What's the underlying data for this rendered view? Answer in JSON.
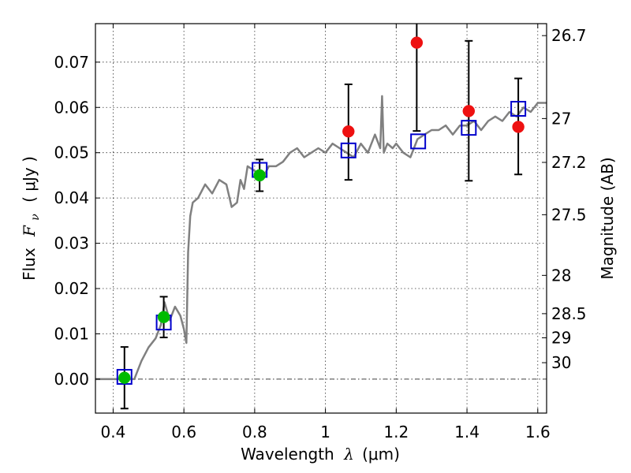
{
  "chart_data": {
    "type": "scatter",
    "xlabel_text": "Wavelength",
    "xlabel_symbol": "λ",
    "xlabel_unit": "(μm)",
    "ylabel_text": "Flux",
    "ylabel_symbol": "F",
    "ylabel_subscript": "ν",
    "ylabel_unit": "( μJy )",
    "y2label": "Magnitude (AB)",
    "xlim": [
      0.35,
      1.625
    ],
    "ylim": [
      -0.0075,
      0.0785
    ],
    "grid": true,
    "x_ticks": [
      0.4,
      0.6,
      0.8,
      1.0,
      1.2,
      1.4,
      1.6
    ],
    "x_tick_labels": [
      "0.4",
      "0.6",
      "0.8",
      "1",
      "1.2",
      "1.4",
      "1.6"
    ],
    "y_ticks": [
      0.0,
      0.01,
      0.02,
      0.03,
      0.04,
      0.05,
      0.06,
      0.07
    ],
    "y_tick_labels": [
      "0.00",
      "0.01",
      "0.02",
      "0.03",
      "0.04",
      "0.05",
      "0.06",
      "0.07"
    ],
    "mag_ticks": [
      26.7,
      27,
      27.2,
      27.5,
      28,
      28.5,
      29,
      30
    ],
    "mag_tick_labels": [
      "26.7",
      "27",
      "27.2",
      "27.5",
      "28",
      "28.5",
      "29",
      "30"
    ],
    "model_spectrum": {
      "color": "#808080",
      "x": [
        0.35,
        0.46,
        0.48,
        0.5,
        0.52,
        0.535,
        0.545,
        0.56,
        0.575,
        0.59,
        0.6,
        0.607,
        0.612,
        0.618,
        0.625,
        0.64,
        0.66,
        0.68,
        0.7,
        0.72,
        0.735,
        0.75,
        0.76,
        0.77,
        0.78,
        0.8,
        0.82,
        0.84,
        0.86,
        0.88,
        0.9,
        0.92,
        0.94,
        0.96,
        0.98,
        1.0,
        1.02,
        1.04,
        1.06,
        1.08,
        1.1,
        1.12,
        1.14,
        1.155,
        1.16,
        1.165,
        1.175,
        1.19,
        1.2,
        1.22,
        1.24,
        1.26,
        1.28,
        1.3,
        1.32,
        1.34,
        1.36,
        1.38,
        1.4,
        1.42,
        1.44,
        1.46,
        1.48,
        1.5,
        1.52,
        1.54,
        1.56,
        1.58,
        1.6,
        1.625
      ],
      "y": [
        0.0,
        0.0,
        0.004,
        0.007,
        0.009,
        0.012,
        0.017,
        0.013,
        0.016,
        0.014,
        0.011,
        0.008,
        0.028,
        0.036,
        0.039,
        0.04,
        0.043,
        0.041,
        0.044,
        0.043,
        0.038,
        0.039,
        0.044,
        0.042,
        0.047,
        0.046,
        0.044,
        0.047,
        0.047,
        0.048,
        0.05,
        0.051,
        0.049,
        0.05,
        0.051,
        0.05,
        0.052,
        0.051,
        0.05,
        0.049,
        0.052,
        0.05,
        0.054,
        0.051,
        0.0625,
        0.05,
        0.052,
        0.051,
        0.052,
        0.05,
        0.049,
        0.053,
        0.054,
        0.055,
        0.055,
        0.056,
        0.054,
        0.056,
        0.056,
        0.057,
        0.055,
        0.057,
        0.058,
        0.057,
        0.059,
        0.058,
        0.06,
        0.059,
        0.061,
        0.061
      ]
    },
    "series": [
      {
        "name": "",
        "marker": "open-square",
        "color": "#0000cc",
        "x": [
          0.432,
          0.543,
          0.814,
          1.065,
          1.262,
          1.405,
          1.545
        ],
        "y": [
          0.0005,
          0.0125,
          0.0462,
          0.0505,
          0.0525,
          0.0555,
          0.0597
        ]
      },
      {
        "name": "",
        "marker": "filled-circle",
        "color": "#00bb00",
        "x": [
          0.432,
          0.543,
          0.814
        ],
        "y": [
          0.0003,
          0.0137,
          0.045
        ],
        "err_low": [
          0.0068,
          0.0045,
          0.0035
        ],
        "err_high": [
          0.0068,
          0.0045,
          0.0035
        ]
      },
      {
        "name": "",
        "marker": "filled-circle",
        "color": "#ee1111",
        "x": [
          1.065,
          1.258,
          1.405,
          1.545
        ],
        "y": [
          0.0547,
          0.0743,
          0.0592,
          0.0557
        ],
        "err_low": [
          0.0107,
          0.0195,
          0.0154,
          0.0105
        ],
        "err_high": [
          0.0104,
          0.0057,
          0.0155,
          0.0107
        ]
      }
    ]
  }
}
